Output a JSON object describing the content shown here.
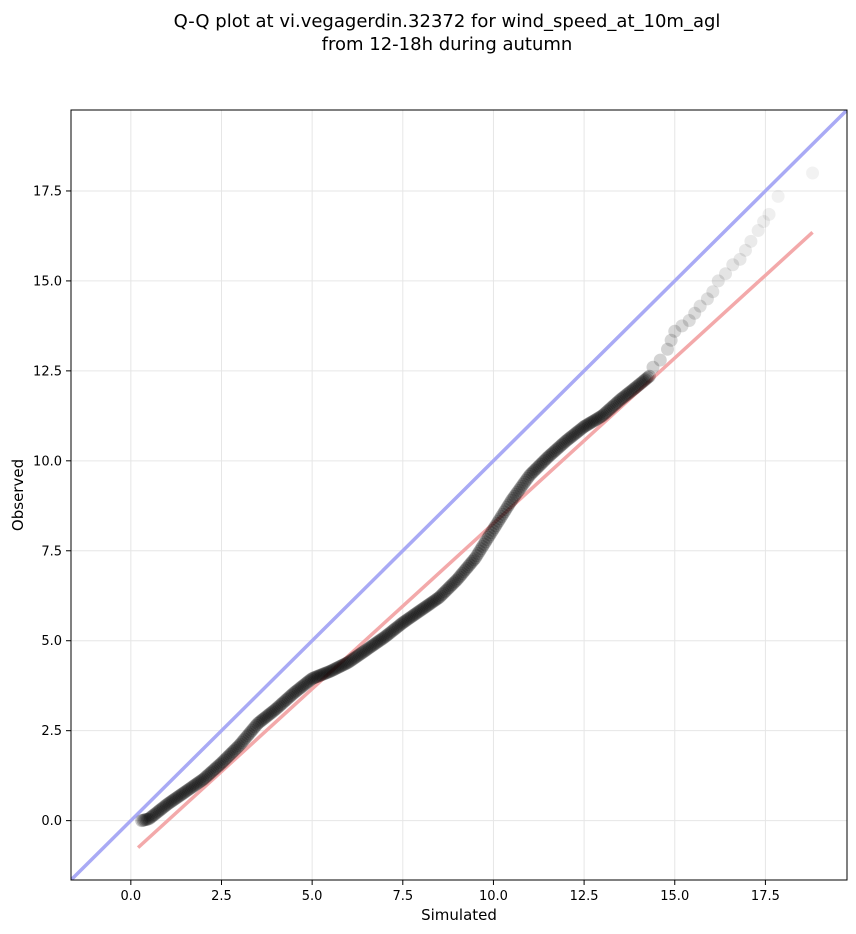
{
  "chart_data": {
    "type": "scatter",
    "title": "Q-Q plot at vi.vegagerdin.32372 for wind_speed_at_10m_agl",
    "subtitle": "from 12-18h during autumn",
    "xlabel": "Simulated",
    "ylabel": "Observed",
    "xlim": [
      -1.65,
      19.75
    ],
    "ylim": [
      -1.65,
      19.75
    ],
    "grid": true,
    "xticks": [
      0.0,
      2.5,
      5.0,
      7.5,
      10.0,
      12.5,
      15.0,
      17.5
    ],
    "yticks": [
      0.0,
      2.5,
      5.0,
      7.5,
      10.0,
      12.5,
      15.0,
      17.5
    ],
    "xtick_labels": [
      "0.0",
      "2.5",
      "5.0",
      "7.5",
      "10.0",
      "12.5",
      "15.0",
      "17.5"
    ],
    "ytick_labels": [
      "0.0",
      "2.5",
      "5.0",
      "7.5",
      "10.0",
      "12.5",
      "15.0",
      "17.5"
    ],
    "colors": {
      "points": "#000000",
      "identity_line": "#a9aaf5",
      "fit_line": "#f3a9aa",
      "grid": "#e6e6e6"
    },
    "quantile_curve_x": [
      0.3,
      0.5,
      1.0,
      1.5,
      2.0,
      2.5,
      3.0,
      3.5,
      4.0,
      4.5,
      5.0,
      5.5,
      6.0,
      6.5,
      7.0,
      7.5,
      8.0,
      8.5,
      9.0,
      9.5,
      10.0,
      10.5,
      11.0,
      11.5,
      12.0,
      12.5,
      13.0,
      13.5,
      14.0,
      14.3
    ],
    "quantile_curve_y": [
      0.0,
      0.05,
      0.45,
      0.8,
      1.15,
      1.6,
      2.1,
      2.7,
      3.1,
      3.55,
      3.95,
      4.15,
      4.4,
      4.75,
      5.1,
      5.5,
      5.85,
      6.2,
      6.7,
      7.3,
      8.1,
      8.9,
      9.6,
      10.1,
      10.55,
      10.95,
      11.25,
      11.7,
      12.1,
      12.35
    ],
    "upper_tail_points": [
      {
        "x": 14.4,
        "y": 12.6
      },
      {
        "x": 14.6,
        "y": 12.8
      },
      {
        "x": 14.8,
        "y": 13.1
      },
      {
        "x": 14.9,
        "y": 13.35
      },
      {
        "x": 15.0,
        "y": 13.6
      },
      {
        "x": 15.2,
        "y": 13.75
      },
      {
        "x": 15.4,
        "y": 13.9
      },
      {
        "x": 15.55,
        "y": 14.1
      },
      {
        "x": 15.7,
        "y": 14.3
      },
      {
        "x": 15.9,
        "y": 14.5
      },
      {
        "x": 16.05,
        "y": 14.7
      },
      {
        "x": 16.2,
        "y": 15.0
      },
      {
        "x": 16.4,
        "y": 15.2
      },
      {
        "x": 16.6,
        "y": 15.45
      },
      {
        "x": 16.8,
        "y": 15.6
      },
      {
        "x": 16.95,
        "y": 15.85
      },
      {
        "x": 17.1,
        "y": 16.1
      },
      {
        "x": 17.3,
        "y": 16.4
      },
      {
        "x": 17.45,
        "y": 16.65
      },
      {
        "x": 17.6,
        "y": 16.85
      },
      {
        "x": 17.85,
        "y": 17.35
      },
      {
        "x": 18.8,
        "y": 18.0
      }
    ],
    "identity_line": {
      "x": [
        -1.65,
        19.75
      ],
      "y": [
        -1.65,
        19.75
      ]
    },
    "fit_line": {
      "x": [
        0.2,
        18.8
      ],
      "y": [
        -0.75,
        16.35
      ]
    }
  }
}
